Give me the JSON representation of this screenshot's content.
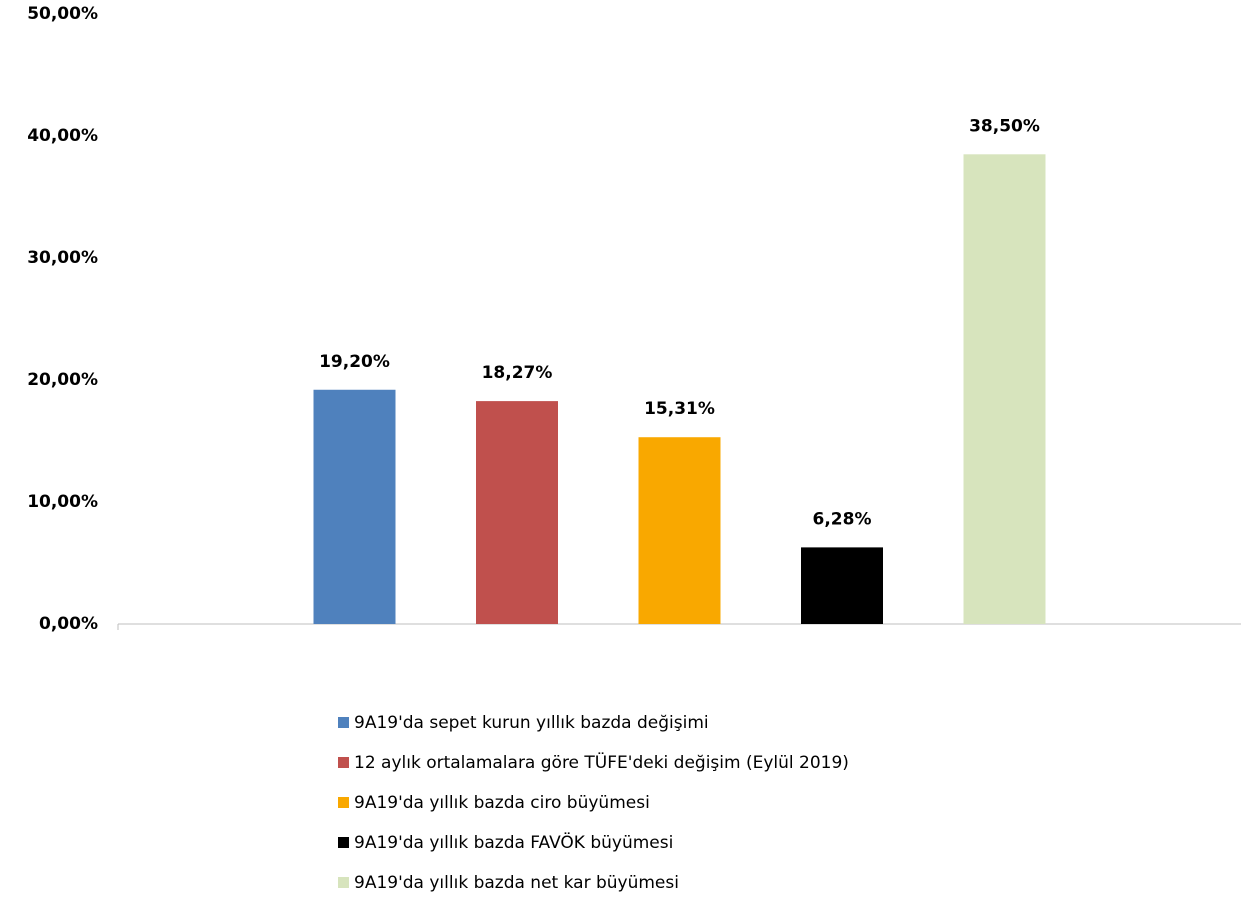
{
  "chart_data": {
    "type": "bar",
    "categories": [
      null
    ],
    "series": [
      {
        "name": "9A19'da sepet kurun yıllık bazda değişimi",
        "color": "#4f81bd",
        "values": [
          19.2
        ],
        "value_labels": [
          "19,20%"
        ]
      },
      {
        "name": "12 aylık ortalamalara göre TÜFE'deki değişim (Eylül 2019)",
        "color": "#c0504d",
        "values": [
          18.27
        ],
        "value_labels": [
          "18,27%"
        ]
      },
      {
        "name": "9A19'da yıllık bazda ciro büyümesi",
        "color": "#f9a800",
        "values": [
          15.31
        ],
        "value_labels": [
          "15,31%"
        ]
      },
      {
        "name": "9A19'da yıllık bazda FAVÖK büyümesi",
        "color": "#000000",
        "values": [
          6.28
        ],
        "value_labels": [
          "6,28%"
        ]
      },
      {
        "name": "9A19'da yıllık bazda net kar büyümesi",
        "color": "#d7e4bd",
        "values": [
          38.5
        ],
        "value_labels": [
          "38,50%"
        ]
      }
    ],
    "ylim": [
      0,
      50
    ],
    "yticks": [
      {
        "value": 0,
        "label": "0,00%"
      },
      {
        "value": 10,
        "label": "10,00%"
      },
      {
        "value": 20,
        "label": "20,00%"
      },
      {
        "value": 30,
        "label": "30,00%"
      },
      {
        "value": 40,
        "label": "40,00%"
      },
      {
        "value": 50,
        "label": "50,00%"
      }
    ],
    "grid": false,
    "legend": "bottom"
  }
}
